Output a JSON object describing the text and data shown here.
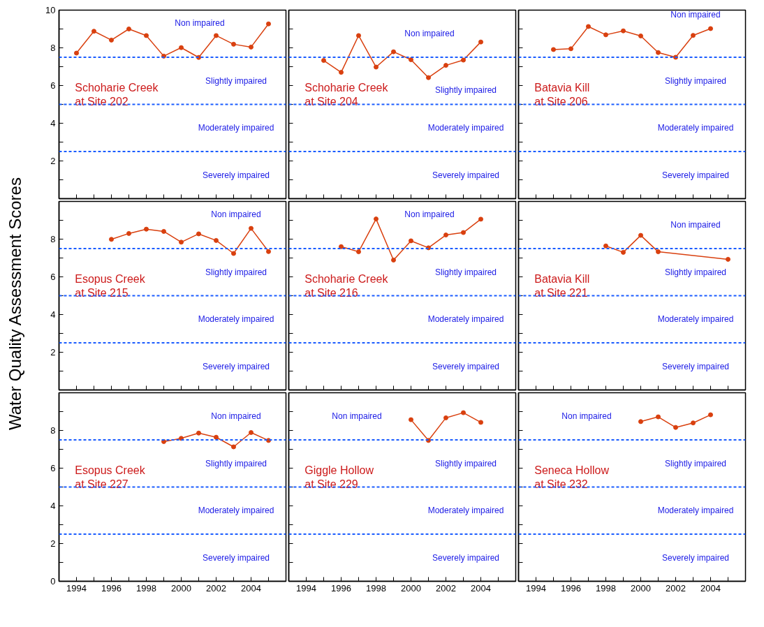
{
  "chart_data": [
    {
      "type": "line",
      "title": "Schoharie Creek\nat Site 202",
      "x": [
        1994,
        1995,
        1996,
        1997,
        1998,
        1999,
        2000,
        2001,
        2002,
        2003,
        2004,
        2005
      ],
      "series": [
        {
          "color": "#d9400f",
          "values": [
            7.72,
            8.88,
            8.41,
            9.0,
            8.65,
            7.56,
            8.01,
            7.49,
            8.65,
            8.19,
            8.04,
            9.27
          ]
        }
      ],
      "xlim": [
        1993,
        2006
      ],
      "ylim": [
        0,
        10
      ],
      "xticks": [
        1994,
        {
          "value": 1995,
          "label": null
        },
        1996,
        {
          "value": 1997,
          "label": null
        },
        1998,
        {
          "value": 1999,
          "label": null
        },
        2000,
        {
          "value": 2001,
          "label": null
        },
        2002,
        {
          "value": 2003,
          "label": null
        },
        2004,
        {
          "value": 2005,
          "label": null
        }
      ],
      "yticks": [
        {
          "value": 1,
          "label": null
        },
        2,
        {
          "value": 3,
          "label": null
        },
        4,
        {
          "value": 5,
          "label": null
        },
        6,
        {
          "value": 7,
          "label": null
        },
        8,
        {
          "value": 9,
          "label": null
        },
        10
      ],
      "tick_labels": "y",
      "marker": "circle",
      "ref_lines": [
        {
          "axis": "y",
          "value": 7.5,
          "color": "#1a5cff"
        },
        {
          "axis": "y",
          "value": 5,
          "color": "#1a5cff"
        },
        {
          "axis": "y",
          "value": 2.5,
          "color": "#1a5cff"
        }
      ],
      "annotations": [
        "Non impaired",
        "Slightly impaired",
        "Moderately impaired",
        "Severely impaired"
      ]
    },
    {
      "type": "line",
      "title": "Schoharie Creek\nat Site 204",
      "x": [
        1995,
        1996,
        1997,
        1998,
        1999,
        2000,
        2001,
        2002,
        2003,
        2004
      ],
      "series": [
        {
          "color": "#d9400f",
          "values": [
            7.33,
            6.7,
            8.65,
            6.98,
            7.79,
            7.37,
            6.42,
            7.07,
            7.35,
            8.31
          ]
        }
      ],
      "xlim": [
        1993,
        2006
      ],
      "ylim": [
        0,
        10
      ],
      "xticks": [
        1994,
        {
          "value": 1995,
          "label": null
        },
        1996,
        {
          "value": 1997,
          "label": null
        },
        1998,
        {
          "value": 1999,
          "label": null
        },
        2000,
        {
          "value": 2001,
          "label": null
        },
        2002,
        {
          "value": 2003,
          "label": null
        },
        2004,
        {
          "value": 2005,
          "label": null
        }
      ],
      "yticks": [
        {
          "value": 1,
          "label": null
        },
        2,
        {
          "value": 3,
          "label": null
        },
        4,
        {
          "value": 5,
          "label": null
        },
        6,
        {
          "value": 7,
          "label": null
        },
        8,
        {
          "value": 9,
          "label": null
        },
        10
      ],
      "tick_labels": false,
      "marker": "circle",
      "ref_lines": [
        {
          "axis": "y",
          "value": 7.5,
          "color": "#1a5cff"
        },
        {
          "axis": "y",
          "value": 5,
          "color": "#1a5cff"
        },
        {
          "axis": "y",
          "value": 2.5,
          "color": "#1a5cff"
        }
      ],
      "annotations": [
        "Non impaired",
        "Slightly impaired",
        "Moderately impaired",
        "Severely impaired"
      ]
    },
    {
      "type": "line",
      "title": "Batavia Kill\nat Site 206",
      "x": [
        1995,
        1996,
        1997,
        1998,
        1999,
        2000,
        2001,
        2002,
        2003,
        2004
      ],
      "series": [
        {
          "color": "#d9400f",
          "values": [
            7.91,
            7.95,
            9.13,
            8.69,
            8.9,
            8.63,
            7.75,
            7.5,
            8.66,
            9.02
          ]
        }
      ],
      "xlim": [
        1993,
        2006
      ],
      "ylim": [
        0,
        10
      ],
      "xticks": [
        1994,
        {
          "value": 1995,
          "label": null
        },
        1996,
        {
          "value": 1997,
          "label": null
        },
        1998,
        {
          "value": 1999,
          "label": null
        },
        2000,
        {
          "value": 2001,
          "label": null
        },
        2002,
        {
          "value": 2003,
          "label": null
        },
        2004,
        {
          "value": 2005,
          "label": null
        }
      ],
      "yticks": [
        {
          "value": 1,
          "label": null
        },
        2,
        {
          "value": 3,
          "label": null
        },
        4,
        {
          "value": 5,
          "label": null
        },
        6,
        {
          "value": 7,
          "label": null
        },
        8,
        {
          "value": 9,
          "label": null
        },
        10
      ],
      "tick_labels": false,
      "marker": "circle",
      "ref_lines": [
        {
          "axis": "y",
          "value": 7.5,
          "color": "#1a5cff"
        },
        {
          "axis": "y",
          "value": 5,
          "color": "#1a5cff"
        },
        {
          "axis": "y",
          "value": 2.5,
          "color": "#1a5cff"
        }
      ],
      "annotations": [
        "Non impaired",
        "Slightly impaired",
        "Moderately impaired",
        "Severely impaired"
      ]
    },
    {
      "type": "line",
      "title": "Esopus Creek\nat Site 215",
      "ylabel": "Water Quality Assessment Scores",
      "x": [
        1996,
        1997,
        1998,
        1999,
        2000,
        2001,
        2002,
        2003,
        2004,
        2005
      ],
      "series": [
        {
          "color": "#d9400f",
          "values": [
            7.99,
            8.3,
            8.53,
            8.41,
            7.84,
            8.28,
            7.93,
            7.24,
            8.57,
            7.34
          ]
        }
      ],
      "xlim": [
        1993,
        2006
      ],
      "ylim": [
        0,
        10
      ],
      "xticks": [
        1994,
        {
          "value": 1995,
          "label": null
        },
        1996,
        {
          "value": 1997,
          "label": null
        },
        1998,
        {
          "value": 1999,
          "label": null
        },
        2000,
        {
          "value": 2001,
          "label": null
        },
        2002,
        {
          "value": 2003,
          "label": null
        },
        2004,
        {
          "value": 2005,
          "label": null
        }
      ],
      "yticks": [
        {
          "value": 1,
          "label": null
        },
        2,
        {
          "value": 3,
          "label": null
        },
        4,
        {
          "value": 5,
          "label": null
        },
        6,
        {
          "value": 7,
          "label": null
        },
        8,
        {
          "value": 9,
          "label": null
        }
      ],
      "tick_labels": "y",
      "marker": "circle",
      "ref_lines": [
        {
          "axis": "y",
          "value": 7.5,
          "color": "#1a5cff"
        },
        {
          "axis": "y",
          "value": 5,
          "color": "#1a5cff"
        },
        {
          "axis": "y",
          "value": 2.5,
          "color": "#1a5cff"
        }
      ],
      "annotations": [
        "Non impaired",
        "Slightly impaired",
        "Moderately impaired",
        "Severely impaired"
      ]
    },
    {
      "type": "line",
      "title": "Schoharie Creek\nat Site 216",
      "x": [
        1996,
        1997,
        1998,
        1999,
        2000,
        2001,
        2002,
        2003,
        2004
      ],
      "series": [
        {
          "color": "#d9400f",
          "values": [
            7.6,
            7.33,
            9.07,
            6.89,
            7.91,
            7.54,
            8.22,
            8.35,
            9.06
          ]
        }
      ],
      "xlim": [
        1993,
        2006
      ],
      "ylim": [
        0,
        10
      ],
      "xticks": [
        1994,
        {
          "value": 1995,
          "label": null
        },
        1996,
        {
          "value": 1997,
          "label": null
        },
        1998,
        {
          "value": 1999,
          "label": null
        },
        2000,
        {
          "value": 2001,
          "label": null
        },
        2002,
        {
          "value": 2003,
          "label": null
        },
        2004,
        {
          "value": 2005,
          "label": null
        }
      ],
      "yticks": [
        {
          "value": 1,
          "label": null
        },
        2,
        {
          "value": 3,
          "label": null
        },
        4,
        {
          "value": 5,
          "label": null
        },
        6,
        {
          "value": 7,
          "label": null
        },
        8,
        {
          "value": 9,
          "label": null
        }
      ],
      "tick_labels": false,
      "marker": "circle",
      "ref_lines": [
        {
          "axis": "y",
          "value": 7.5,
          "color": "#1a5cff"
        },
        {
          "axis": "y",
          "value": 5,
          "color": "#1a5cff"
        },
        {
          "axis": "y",
          "value": 2.5,
          "color": "#1a5cff"
        }
      ],
      "annotations": [
        "Non impaired",
        "Slightly impaired",
        "Moderately impaired",
        "Severely impaired"
      ]
    },
    {
      "type": "line",
      "title": "Batavia Kill\nat Site 221",
      "x": [
        1998,
        1999,
        2000,
        2001,
        2005
      ],
      "series": [
        {
          "color": "#d9400f",
          "values": [
            7.64,
            7.3,
            8.2,
            7.33,
            6.93
          ]
        }
      ],
      "xlim": [
        1993,
        2006
      ],
      "ylim": [
        0,
        10
      ],
      "xticks": [
        1994,
        {
          "value": 1995,
          "label": null
        },
        1996,
        {
          "value": 1997,
          "label": null
        },
        1998,
        {
          "value": 1999,
          "label": null
        },
        2000,
        {
          "value": 2001,
          "label": null
        },
        2002,
        {
          "value": 2003,
          "label": null
        },
        2004,
        {
          "value": 2005,
          "label": null
        }
      ],
      "yticks": [
        {
          "value": 1,
          "label": null
        },
        2,
        {
          "value": 3,
          "label": null
        },
        4,
        {
          "value": 5,
          "label": null
        },
        6,
        {
          "value": 7,
          "label": null
        },
        8,
        {
          "value": 9,
          "label": null
        }
      ],
      "tick_labels": false,
      "marker": "circle",
      "ref_lines": [
        {
          "axis": "y",
          "value": 7.5,
          "color": "#1a5cff"
        },
        {
          "axis": "y",
          "value": 5,
          "color": "#1a5cff"
        },
        {
          "axis": "y",
          "value": 2.5,
          "color": "#1a5cff"
        }
      ],
      "annotations": [
        "Non impaired",
        "Slightly impaired",
        "Moderately impaired",
        "Severely impaired"
      ]
    },
    {
      "type": "line",
      "title": "Esopus Creek\nat Site 227",
      "x": [
        1999,
        2000,
        2001,
        2002,
        2003,
        2004,
        2005
      ],
      "series": [
        {
          "color": "#d9400f",
          "values": [
            7.41,
            7.58,
            7.86,
            7.64,
            7.13,
            7.89,
            7.47
          ]
        }
      ],
      "xlim": [
        1993,
        2006
      ],
      "ylim": [
        0,
        10
      ],
      "xticks": [
        1994,
        {
          "value": 1995,
          "label": null
        },
        1996,
        {
          "value": 1997,
          "label": null
        },
        1998,
        {
          "value": 1999,
          "label": null
        },
        2000,
        {
          "value": 2001,
          "label": null
        },
        2002,
        {
          "value": 2003,
          "label": null
        },
        2004,
        {
          "value": 2005,
          "label": null
        }
      ],
      "yticks": [
        0,
        {
          "value": 1,
          "label": null
        },
        2,
        {
          "value": 3,
          "label": null
        },
        4,
        {
          "value": 5,
          "label": null
        },
        6,
        {
          "value": 7,
          "label": null
        },
        8,
        {
          "value": 9,
          "label": null
        }
      ],
      "marker": "circle",
      "ref_lines": [
        {
          "axis": "y",
          "value": 7.5,
          "color": "#1a5cff"
        },
        {
          "axis": "y",
          "value": 5,
          "color": "#1a5cff"
        },
        {
          "axis": "y",
          "value": 2.5,
          "color": "#1a5cff"
        }
      ],
      "annotations": [
        "Non impaired",
        "Slightly impaired",
        "Moderately impaired",
        "Severely impaired"
      ]
    },
    {
      "type": "line",
      "title": "Giggle Hollow\nat Site 229",
      "x": [
        2000,
        2001,
        2002,
        2003,
        2004
      ],
      "series": [
        {
          "color": "#d9400f",
          "values": [
            8.57,
            7.47,
            8.67,
            8.94,
            8.43
          ]
        }
      ],
      "xlim": [
        1993,
        2006
      ],
      "ylim": [
        0,
        10
      ],
      "xticks": [
        1994,
        {
          "value": 1995,
          "label": null
        },
        1996,
        {
          "value": 1997,
          "label": null
        },
        1998,
        {
          "value": 1999,
          "label": null
        },
        2000,
        {
          "value": 2001,
          "label": null
        },
        2002,
        {
          "value": 2003,
          "label": null
        },
        2004,
        {
          "value": 2005,
          "label": null
        }
      ],
      "yticks": [
        {
          "value": 0,
          "label": null
        },
        {
          "value": 1,
          "label": null
        },
        {
          "value": 2,
          "label": null
        },
        {
          "value": 3,
          "label": null
        },
        {
          "value": 4,
          "label": null
        },
        {
          "value": 5,
          "label": null
        },
        {
          "value": 6,
          "label": null
        },
        {
          "value": 7,
          "label": null
        },
        {
          "value": 8,
          "label": null
        },
        {
          "value": 9,
          "label": null
        }
      ],
      "tick_labels": "x",
      "marker": "circle",
      "ref_lines": [
        {
          "axis": "y",
          "value": 7.5,
          "color": "#1a5cff"
        },
        {
          "axis": "y",
          "value": 5,
          "color": "#1a5cff"
        },
        {
          "axis": "y",
          "value": 2.5,
          "color": "#1a5cff"
        }
      ],
      "annotations": [
        "Non impaired",
        "Slightly impaired",
        "Moderately impaired",
        "Severely impaired"
      ]
    },
    {
      "type": "line",
      "title": "Seneca Hollow\nat Site 232",
      "x": [
        2000,
        2001,
        2002,
        2003,
        2004
      ],
      "series": [
        {
          "color": "#d9400f",
          "values": [
            8.47,
            8.72,
            8.16,
            8.4,
            8.83
          ]
        }
      ],
      "xlim": [
        1993,
        2006
      ],
      "ylim": [
        0,
        10
      ],
      "xticks": [
        1994,
        {
          "value": 1995,
          "label": null
        },
        1996,
        {
          "value": 1997,
          "label": null
        },
        1998,
        {
          "value": 1999,
          "label": null
        },
        2000,
        {
          "value": 2001,
          "label": null
        },
        2002,
        {
          "value": 2003,
          "label": null
        },
        2004,
        {
          "value": 2005,
          "label": null
        }
      ],
      "yticks": [
        {
          "value": 0,
          "label": null
        },
        {
          "value": 1,
          "label": null
        },
        {
          "value": 2,
          "label": null
        },
        {
          "value": 3,
          "label": null
        },
        {
          "value": 4,
          "label": null
        },
        {
          "value": 5,
          "label": null
        },
        {
          "value": 6,
          "label": null
        },
        {
          "value": 7,
          "label": null
        },
        {
          "value": 8,
          "label": null
        },
        {
          "value": 9,
          "label": null
        }
      ],
      "tick_labels": "x",
      "marker": "circle",
      "ref_lines": [
        {
          "axis": "y",
          "value": 7.5,
          "color": "#1a5cff"
        },
        {
          "axis": "y",
          "value": 5,
          "color": "#1a5cff"
        },
        {
          "axis": "y",
          "value": 2.5,
          "color": "#1a5cff"
        }
      ],
      "annotations": [
        "Non impaired",
        "Slightly impaired",
        "Moderately impaired",
        "Severely impaired"
      ]
    }
  ]
}
